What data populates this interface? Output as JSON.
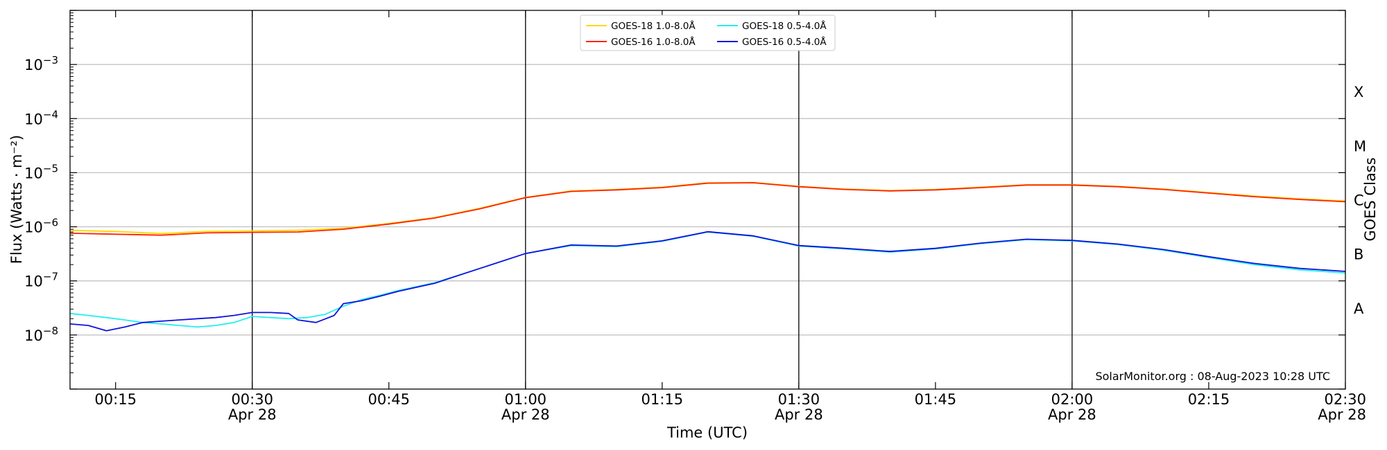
{
  "chart_data": {
    "type": "line",
    "title": "",
    "xlabel": "Time (UTC)",
    "ylabel": "Flux (Watts · m⁻²)",
    "y2label": "GOES Class",
    "yscale": "log",
    "ylim": [
      1e-09,
      0.01
    ],
    "xlim": [
      "00:10",
      "02:30"
    ],
    "xticks": [
      {
        "time": "00:15",
        "date": ""
      },
      {
        "time": "00:30",
        "date": "Apr 28"
      },
      {
        "time": "00:45",
        "date": ""
      },
      {
        "time": "01:00",
        "date": "Apr 28"
      },
      {
        "time": "01:15",
        "date": ""
      },
      {
        "time": "01:30",
        "date": "Apr 28"
      },
      {
        "time": "01:45",
        "date": ""
      },
      {
        "time": "02:00",
        "date": "Apr 28"
      },
      {
        "time": "02:15",
        "date": ""
      },
      {
        "time": "02:30",
        "date": "Apr 28"
      }
    ],
    "yticks": [
      {
        "base": "10",
        "exp": "−3",
        "value": 0.001
      },
      {
        "base": "10",
        "exp": "−4",
        "value": 0.0001
      },
      {
        "base": "10",
        "exp": "−5",
        "value": 1e-05
      },
      {
        "base": "10",
        "exp": "−6",
        "value": 1e-06
      },
      {
        "base": "10",
        "exp": "−7",
        "value": 1e-07
      },
      {
        "base": "10",
        "exp": "−8",
        "value": 1e-08
      }
    ],
    "goes_classes": [
      {
        "label": "X",
        "value": 0.000316
      },
      {
        "label": "M",
        "value": 3.16e-05
      },
      {
        "label": "C",
        "value": 3.16e-06
      },
      {
        "label": "B",
        "value": 3.16e-07
      },
      {
        "label": "A",
        "value": 3.16e-08
      }
    ],
    "grid": true,
    "vlines": [
      "00:30",
      "01:00",
      "01:30",
      "02:00"
    ],
    "legend_position": "top-center",
    "credit": "SolarMonitor.org : 08-Aug-2023 10:28 UTC",
    "series": [
      {
        "name": "GOES-18 1.0-8.0Å",
        "color": "#ffd700",
        "points": [
          [
            "00:10",
            8.6e-07
          ],
          [
            "00:15",
            8.2e-07
          ],
          [
            "00:20",
            7.5e-07
          ],
          [
            "00:25",
            8.2e-07
          ],
          [
            "00:30",
            8.4e-07
          ],
          [
            "00:35",
            8.6e-07
          ],
          [
            "00:40",
            9.4e-07
          ],
          [
            "00:45",
            1.15e-06
          ],
          [
            "00:50",
            1.48e-06
          ],
          [
            "00:55",
            2.2e-06
          ],
          [
            "01:00",
            3.5e-06
          ],
          [
            "01:05",
            4.6e-06
          ],
          [
            "01:10",
            4.9e-06
          ],
          [
            "01:15",
            5.4e-06
          ],
          [
            "01:20",
            6.5e-06
          ],
          [
            "01:25",
            6.6e-06
          ],
          [
            "01:30",
            5.6e-06
          ],
          [
            "01:35",
            5e-06
          ],
          [
            "01:40",
            4.7e-06
          ],
          [
            "01:45",
            4.9e-06
          ],
          [
            "01:50",
            5.4e-06
          ],
          [
            "01:55",
            6e-06
          ],
          [
            "02:00",
            6e-06
          ],
          [
            "02:05",
            5.6e-06
          ],
          [
            "02:10",
            5e-06
          ],
          [
            "02:15",
            4.3e-06
          ],
          [
            "02:20",
            3.7e-06
          ],
          [
            "02:25",
            3.3e-06
          ],
          [
            "02:30",
            3e-06
          ]
        ]
      },
      {
        "name": "GOES-16 1.0-8.0Å",
        "color": "#ff2200",
        "points": [
          [
            "00:10",
            7.6e-07
          ],
          [
            "00:15",
            7.3e-07
          ],
          [
            "00:20",
            7e-07
          ],
          [
            "00:25",
            7.7e-07
          ],
          [
            "00:30",
            7.9e-07
          ],
          [
            "00:35",
            8e-07
          ],
          [
            "00:40",
            9e-07
          ],
          [
            "00:45",
            1.12e-06
          ],
          [
            "00:50",
            1.45e-06
          ],
          [
            "00:55",
            2.15e-06
          ],
          [
            "01:00",
            3.45e-06
          ],
          [
            "01:05",
            4.5e-06
          ],
          [
            "01:10",
            4.8e-06
          ],
          [
            "01:15",
            5.3e-06
          ],
          [
            "01:20",
            6.4e-06
          ],
          [
            "01:25",
            6.5e-06
          ],
          [
            "01:30",
            5.5e-06
          ],
          [
            "01:35",
            4.9e-06
          ],
          [
            "01:40",
            4.6e-06
          ],
          [
            "01:45",
            4.8e-06
          ],
          [
            "01:50",
            5.3e-06
          ],
          [
            "01:55",
            5.9e-06
          ],
          [
            "02:00",
            5.9e-06
          ],
          [
            "02:05",
            5.5e-06
          ],
          [
            "02:10",
            4.9e-06
          ],
          [
            "02:15",
            4.2e-06
          ],
          [
            "02:20",
            3.6e-06
          ],
          [
            "02:25",
            3.2e-06
          ],
          [
            "02:30",
            2.9e-06
          ]
        ]
      },
      {
        "name": "GOES-18 0.5-4.0Å",
        "color": "#22eeee",
        "points": [
          [
            "00:10",
            2.5e-08
          ],
          [
            "00:12",
            2.3e-08
          ],
          [
            "00:14",
            2.1e-08
          ],
          [
            "00:16",
            1.9e-08
          ],
          [
            "00:18",
            1.7e-08
          ],
          [
            "00:20",
            1.6e-08
          ],
          [
            "00:22",
            1.5e-08
          ],
          [
            "00:24",
            1.4e-08
          ],
          [
            "00:26",
            1.5e-08
          ],
          [
            "00:28",
            1.7e-08
          ],
          [
            "00:30",
            2.2e-08
          ],
          [
            "00:32",
            2.1e-08
          ],
          [
            "00:34",
            2e-08
          ],
          [
            "00:36",
            2.1e-08
          ],
          [
            "00:38",
            2.4e-08
          ],
          [
            "00:40",
            3.4e-08
          ],
          [
            "00:42",
            4.5e-08
          ],
          [
            "00:44",
            5.4e-08
          ],
          [
            "00:46",
            6.6e-08
          ],
          [
            "00:48",
            7.8e-08
          ],
          [
            "00:50",
            9.2e-08
          ],
          [
            "00:55",
            1.7e-07
          ],
          [
            "01:00",
            3.2e-07
          ],
          [
            "01:05",
            4.5e-07
          ],
          [
            "01:10",
            4.3e-07
          ],
          [
            "01:15",
            5.4e-07
          ],
          [
            "01:20",
            8e-07
          ],
          [
            "01:25",
            6.7e-07
          ],
          [
            "01:30",
            4.4e-07
          ],
          [
            "01:35",
            3.9e-07
          ],
          [
            "01:40",
            3.4e-07
          ],
          [
            "01:45",
            3.9e-07
          ],
          [
            "01:50",
            4.9e-07
          ],
          [
            "01:55",
            5.8e-07
          ],
          [
            "02:00",
            5.5e-07
          ],
          [
            "02:05",
            4.7e-07
          ],
          [
            "02:10",
            3.7e-07
          ],
          [
            "02:15",
            2.7e-07
          ],
          [
            "02:20",
            2e-07
          ],
          [
            "02:25",
            1.6e-07
          ],
          [
            "02:30",
            1.4e-07
          ]
        ]
      },
      {
        "name": "GOES-16 0.5-4.0Å",
        "color": "#1010dd",
        "points": [
          [
            "00:10",
            1.6e-08
          ],
          [
            "00:12",
            1.5e-08
          ],
          [
            "00:14",
            1.2e-08
          ],
          [
            "00:16",
            1.4e-08
          ],
          [
            "00:18",
            1.7e-08
          ],
          [
            "00:20",
            1.8e-08
          ],
          [
            "00:22",
            1.9e-08
          ],
          [
            "00:24",
            2e-08
          ],
          [
            "00:26",
            2.1e-08
          ],
          [
            "00:28",
            2.3e-08
          ],
          [
            "00:30",
            2.6e-08
          ],
          [
            "00:32",
            2.6e-08
          ],
          [
            "00:34",
            2.5e-08
          ],
          [
            "00:35",
            1.9e-08
          ],
          [
            "00:37",
            1.7e-08
          ],
          [
            "00:39",
            2.3e-08
          ],
          [
            "00:40",
            3.8e-08
          ],
          [
            "00:42",
            4.3e-08
          ],
          [
            "00:44",
            5.2e-08
          ],
          [
            "00:46",
            6.4e-08
          ],
          [
            "00:48",
            7.6e-08
          ],
          [
            "00:50",
            9e-08
          ],
          [
            "00:55",
            1.7e-07
          ],
          [
            "01:00",
            3.2e-07
          ],
          [
            "01:05",
            4.6e-07
          ],
          [
            "01:10",
            4.4e-07
          ],
          [
            "01:15",
            5.5e-07
          ],
          [
            "01:20",
            8.1e-07
          ],
          [
            "01:25",
            6.8e-07
          ],
          [
            "01:30",
            4.5e-07
          ],
          [
            "01:35",
            4e-07
          ],
          [
            "01:40",
            3.5e-07
          ],
          [
            "01:45",
            4e-07
          ],
          [
            "01:50",
            5e-07
          ],
          [
            "01:55",
            5.9e-07
          ],
          [
            "02:00",
            5.6e-07
          ],
          [
            "02:05",
            4.8e-07
          ],
          [
            "02:10",
            3.8e-07
          ],
          [
            "02:15",
            2.8e-07
          ],
          [
            "02:20",
            2.1e-07
          ],
          [
            "02:25",
            1.7e-07
          ],
          [
            "02:30",
            1.5e-07
          ]
        ]
      }
    ]
  }
}
